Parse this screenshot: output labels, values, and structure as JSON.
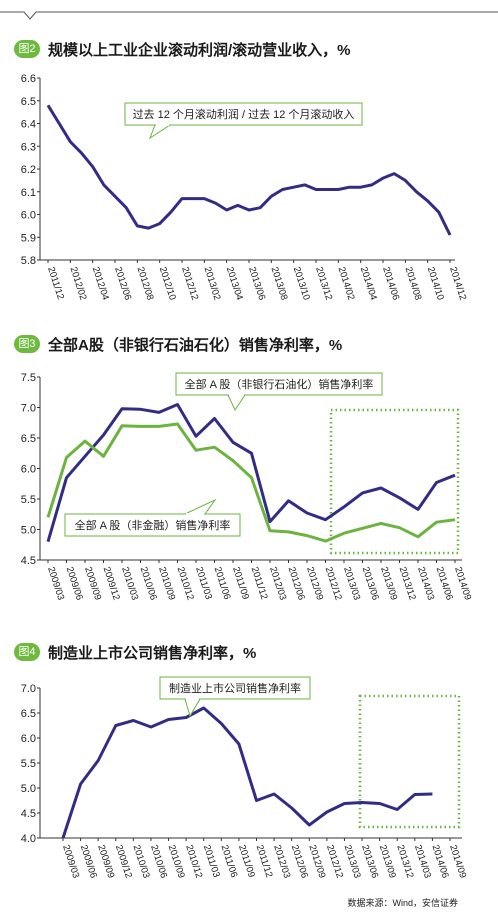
{
  "source": "数据来源：Wind，安信证券",
  "chart_data": [
    {
      "type": "line",
      "badge": "图2",
      "title": "规模以上工业企业滚动利润/滚动营业收入，%",
      "ylim": [
        5.8,
        6.6
      ],
      "yticks": [
        "6.6",
        "6.5",
        "6.4",
        "6.3",
        "6.2",
        "6.1",
        "6.0",
        "5.9",
        "5.8"
      ],
      "x": [
        "2011/12",
        "2012/01",
        "2012/02",
        "2012/03",
        "2012/04",
        "2012/05",
        "2012/06",
        "2012/07",
        "2012/08",
        "2012/09",
        "2012/10",
        "2012/11",
        "2012/12",
        "2013/01",
        "2013/02",
        "2013/03",
        "2013/04",
        "2013/05",
        "2013/06",
        "2013/07",
        "2013/08",
        "2013/09",
        "2013/10",
        "2013/11",
        "2013/12",
        "2014/01",
        "2014/02",
        "2014/03",
        "2014/04",
        "2014/05",
        "2014/06",
        "2014/07",
        "2014/08",
        "2014/09",
        "2014/10",
        "2014/11",
        "2014/12"
      ],
      "xticklabels": [
        "2011/12",
        "2012/02",
        "2012/04",
        "2012/06",
        "2012/08",
        "2012/10",
        "2012/12",
        "2013/02",
        "2013/04",
        "2013/06",
        "2013/08",
        "2013/10",
        "2013/12",
        "2014/02",
        "2014/04",
        "2014/06",
        "2014/08",
        "2014/10",
        "2014/12"
      ],
      "series": [
        {
          "name": "过去 12 个月滚动利润 / 过去 12 个月滚动收入",
          "color": "#332c86",
          "values": [
            6.48,
            6.4,
            6.32,
            6.27,
            6.21,
            6.13,
            6.08,
            6.03,
            5.95,
            5.94,
            5.96,
            6.01,
            6.07,
            6.07,
            6.07,
            6.05,
            6.02,
            6.04,
            6.02,
            6.03,
            6.08,
            6.11,
            6.12,
            6.13,
            6.11,
            6.11,
            6.11,
            6.12,
            6.12,
            6.13,
            6.16,
            6.18,
            6.15,
            6.1,
            6.06,
            6.01,
            5.91
          ]
        }
      ]
    },
    {
      "type": "line",
      "badge": "图3",
      "title": "全部A股（非银行石油石化）销售净利率，%",
      "ylim": [
        4.5,
        7.5
      ],
      "yticks": [
        "7.5",
        "7.0",
        "6.5",
        "6.0",
        "5.5",
        "5.0",
        "4.5"
      ],
      "x": [
        "2009/03",
        "2009/06",
        "2009/09",
        "2009/12",
        "2010/03",
        "2010/06",
        "2010/09",
        "2010/12",
        "2011/03",
        "2011/06",
        "2011/09",
        "2011/12",
        "2012/03",
        "2012/06",
        "2012/09",
        "2012/12",
        "2013/03",
        "2013/06",
        "2013/09",
        "2013/12",
        "2014/03",
        "2014/06",
        "2014/09"
      ],
      "xticklabels": [
        "2009/03",
        "2009/06",
        "2009/09",
        "2009/12",
        "2010/03",
        "2010/06",
        "2010/09",
        "2010/12",
        "2011/03",
        "2011/06",
        "2011/09",
        "2011/12",
        "2012/03",
        "2012/06",
        "2012/09",
        "2012/12",
        "2013/03",
        "2013/06",
        "2013/09",
        "2013/12",
        "2014/03",
        "2014/06",
        "2014/09"
      ],
      "series": [
        {
          "name": "全部 A 股（非银行石油化）销售净利率",
          "color": "#332c86",
          "values": [
            4.8,
            5.85,
            6.2,
            6.55,
            6.98,
            6.97,
            6.92,
            7.05,
            6.53,
            6.82,
            6.43,
            6.25,
            5.13,
            5.47,
            5.27,
            5.16,
            5.37,
            5.6,
            5.68,
            5.52,
            5.33,
            5.77,
            5.89
          ]
        },
        {
          "name": "全部 A 股（非金融）销售净利率",
          "color": "#6cb33f",
          "values": [
            5.2,
            6.18,
            6.45,
            6.2,
            6.7,
            6.69,
            6.69,
            6.73,
            6.3,
            6.35,
            6.13,
            5.85,
            4.98,
            4.96,
            4.9,
            4.81,
            4.94,
            5.02,
            5.1,
            5.03,
            4.88,
            5.12,
            5.16
          ]
        }
      ]
    },
    {
      "type": "line",
      "badge": "图4",
      "title": "制造业上市公司销售净利率，%",
      "ylim": [
        4.0,
        7.0
      ],
      "yticks": [
        "7.0",
        "6.5",
        "6.0",
        "5.5",
        "5.0",
        "4.5",
        "4.0"
      ],
      "x": [
        "2009/03",
        "2009/06",
        "2009/09",
        "2009/12",
        "2010/03",
        "2010/06",
        "2010/09",
        "2010/12",
        "2011/03",
        "2011/06",
        "2011/09",
        "2011/12",
        "2012/03",
        "2012/06",
        "2012/09",
        "2012/12",
        "2013/03",
        "2013/06",
        "2013/09",
        "2013/12",
        "2014/03",
        "2014/06",
        "2014/09"
      ],
      "xticklabels": [
        "2009/03",
        "2009/06",
        "2009/09",
        "2009/12",
        "2010/03",
        "2010/06",
        "2010/09",
        "2010/12",
        "2011/03",
        "2011/06",
        "2011/09",
        "2011/12",
        "2012/03",
        "2012/06",
        "2012/09",
        "2012/12",
        "2013/03",
        "2013/06",
        "2013/09",
        "2013/12",
        "2014/03",
        "2014/06",
        "2014/09"
      ],
      "series": [
        {
          "name": "制造业上市公司销售净利率",
          "color": "#332c86",
          "values": [
            4.0,
            5.08,
            5.55,
            6.25,
            6.35,
            6.22,
            6.37,
            6.41,
            6.6,
            6.29,
            5.88,
            4.75,
            4.88,
            4.6,
            4.26,
            4.52,
            4.69,
            4.71,
            4.69,
            4.57,
            4.87,
            4.88,
            null
          ]
        }
      ]
    }
  ]
}
